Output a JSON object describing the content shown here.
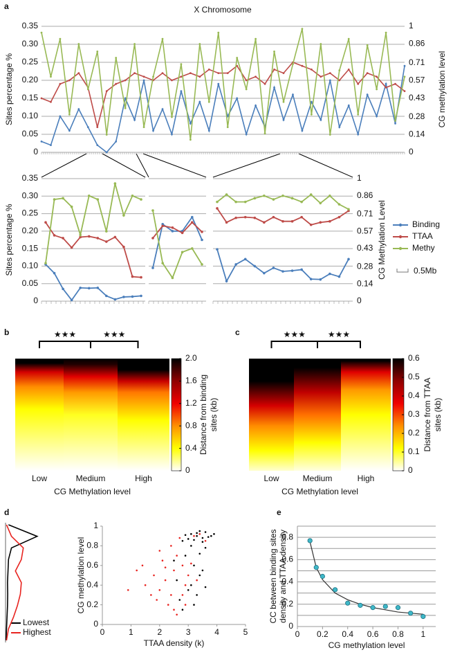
{
  "chart_data": [
    {
      "type": "line",
      "panel": "a",
      "title": "X Chromosome",
      "ylabel": "Sites percentage %",
      "y2label": "CG methylation level",
      "ylim": [
        0,
        0.35
      ],
      "yticks": [
        0,
        0.05,
        {
          "value": 0.1,
          "label": "0.10"
        },
        0.15,
        {
          "value": 0.2,
          "label": "0.20"
        },
        0.25,
        {
          "value": 0.3,
          "label": "0.30"
        },
        0.35
      ],
      "y2lim": [
        0,
        1
      ],
      "y2ticks": [
        0,
        0.14,
        0.28,
        0.43,
        0.57,
        0.71,
        0.86,
        1
      ],
      "grid": true,
      "series": [
        {
          "color": "#4a7ebb",
          "values": [
            0.03,
            0.02,
            0.1,
            0.06,
            0.12,
            0.07,
            0.02,
            0.0,
            0.03,
            0.15,
            0.09,
            0.2,
            0.06,
            0.12,
            0.05,
            0.17,
            0.08,
            0.14,
            0.06,
            0.19,
            0.1,
            0.15,
            0.05,
            0.13,
            0.07,
            0.18,
            0.09,
            0.16,
            0.06,
            0.14,
            0.09,
            0.2,
            0.07,
            0.13,
            0.05,
            0.16,
            0.1,
            0.19,
            0.08,
            0.24
          ]
        },
        {
          "color": "#be4b48",
          "values": [
            0.15,
            0.14,
            0.19,
            0.2,
            0.22,
            0.18,
            0.07,
            0.17,
            0.19,
            0.2,
            0.22,
            0.21,
            0.2,
            0.22,
            0.2,
            0.21,
            0.22,
            0.21,
            0.23,
            0.22,
            0.22,
            0.24,
            0.2,
            0.21,
            0.19,
            0.23,
            0.22,
            0.25,
            0.24,
            0.23,
            0.21,
            0.22,
            0.2,
            0.23,
            0.19,
            0.22,
            0.21,
            0.18,
            0.19,
            0.17
          ]
        },
        {
          "color": "#98b954",
          "axis": "y2",
          "values": [
            0.95,
            0.6,
            0.9,
            0.3,
            0.86,
            0.5,
            0.8,
            0.14,
            0.75,
            0.35,
            0.86,
            0.2,
            0.6,
            0.9,
            0.28,
            0.7,
            0.1,
            0.86,
            0.4,
            0.95,
            0.2,
            0.75,
            0.5,
            0.9,
            0.15,
            0.8,
            0.4,
            0.7,
            0.98,
            0.3,
            0.86,
            0.14,
            0.65,
            0.9,
            0.3,
            0.85,
            0.5,
            0.95,
            0.25,
            0.6
          ]
        }
      ]
    },
    {
      "type": "line-panels",
      "ylabel": "Sites percentage %",
      "y2label": "CG Methylation Level",
      "ylim": [
        0,
        0.35
      ],
      "yticks": [
        0,
        0.05,
        {
          "value": 0.1,
          "label": "0.10"
        },
        0.15,
        {
          "value": 0.2,
          "label": "0.20"
        },
        0.25,
        {
          "value": 0.3,
          "label": "0.30"
        },
        0.35
      ],
      "y2lim": [
        0,
        1
      ],
      "y2ticks": [
        0,
        0.14,
        0.28,
        0.43,
        0.57,
        0.71,
        0.86,
        1
      ],
      "grid": true,
      "legend": "right",
      "scale_label": "0.5Mb",
      "series": [
        {
          "name": "Binding",
          "color": "#4a7ebb",
          "values": [
            [
              0.105,
              0.08,
              0.035,
              0.003,
              0.038,
              0.037,
              0.038,
              0.015,
              0.005,
              0.012,
              0.013,
              0.015
            ],
            [
              0.095,
              0.22,
              0.2,
              0.2,
              0.24,
              0.175
            ],
            [
              0.148,
              0.057,
              0.105,
              0.12,
              0.1,
              0.08,
              0.095,
              0.085,
              0.087,
              0.09,
              0.063,
              0.062,
              0.078,
              0.07,
              0.12
            ]
          ]
        },
        {
          "name": "TTAA",
          "color": "#be4b48",
          "values": [
            [
              0.225,
              0.188,
              0.18,
              0.153,
              0.183,
              0.185,
              0.18,
              0.17,
              0.183,
              0.155,
              0.07,
              0.068
            ],
            [
              0.18,
              0.215,
              0.21,
              0.195,
              0.225,
              0.198
            ],
            [
              0.265,
              0.225,
              0.238,
              0.24,
              0.238,
              0.225,
              0.24,
              0.228,
              0.228,
              0.24,
              0.218,
              0.225,
              0.228,
              0.24,
              0.258
            ]
          ]
        },
        {
          "name": "Methy",
          "color": "#98b954",
          "axis": "y2",
          "values": [
            [
              0.31,
              0.83,
              0.84,
              0.77,
              0.54,
              0.86,
              0.83,
              0.57,
              0.96,
              0.7,
              0.86,
              0.83
            ],
            [
              0.74,
              0.31,
              0.19,
              0.4,
              0.43,
              0.3
            ],
            [
              0.81,
              0.87,
              0.81,
              0.81,
              0.84,
              0.86,
              0.83,
              0.86,
              0.84,
              0.81,
              0.87,
              0.8,
              0.86,
              0.79,
              0.75
            ]
          ]
        }
      ]
    },
    {
      "type": "heatmap",
      "panel": "b",
      "categories": [
        "Low",
        "Medium",
        "High"
      ],
      "xlabel": "CG Methylation level",
      "annotations": [
        "★★★",
        "★★★"
      ],
      "zlim": [
        0,
        2
      ],
      "zticks": [
        0,
        0.4,
        0.8,
        1.2,
        1.6,
        {
          "value": 2,
          "label": "2.0"
        }
      ],
      "zlabel": [
        "Distance from binding",
        "sites (kb)"
      ]
    },
    {
      "type": "heatmap",
      "panel": "c",
      "categories": [
        "Low",
        "Medium",
        "High"
      ],
      "xlabel": "CG Methylation level",
      "annotations": [
        "★★★",
        "★★★"
      ],
      "zlim": [
        0,
        0.6
      ],
      "zticks": [
        0,
        0.1,
        0.2,
        0.3,
        0.4,
        0.5,
        0.6
      ],
      "zlabel": [
        "Distance from TTAA",
        "sites (kb)"
      ]
    },
    {
      "type": "scatter",
      "panel": "d",
      "xlabel": "TTAA density (k)",
      "ylabel": "CG methylation level",
      "xlim": [
        0,
        5
      ],
      "xticks": [
        0,
        1,
        2,
        3,
        4,
        5
      ],
      "ylim": [
        0,
        1
      ],
      "yticks": [
        0,
        0.2,
        0.4,
        0.6,
        0.8,
        1
      ],
      "density_xlim": [
        0,
        3.5
      ],
      "density_levels": [
        0,
        0.1,
        0.2,
        0.3,
        0.4,
        0.5,
        0.6,
        0.7,
        0.8,
        0.9,
        1
      ],
      "series": [
        {
          "name": "Lowest",
          "color": "#000000",
          "x": [
            3.1,
            3.3,
            3.5,
            3.6,
            3.2,
            2.9,
            3.4,
            3.7,
            3.0,
            3.3,
            3.5,
            3.8,
            2.8,
            3.1,
            3.6,
            3.2,
            3.4,
            2.6,
            3.0,
            3.3,
            2.9,
            3.5,
            2.7,
            3.1,
            3.9,
            2.5,
            3.2,
            3.6,
            2.8,
            3.4
          ],
          "values": [
            0.92,
            0.9,
            0.88,
            0.94,
            0.86,
            0.91,
            0.95,
            0.89,
            0.87,
            0.93,
            0.84,
            0.9,
            0.85,
            0.8,
            0.78,
            0.6,
            0.5,
            0.45,
            0.35,
            0.3,
            0.7,
            0.55,
            0.25,
            0.4,
            0.92,
            0.65,
            0.2,
            0.38,
            0.15,
            0.72
          ],
          "density": [
            0.05,
            0.1,
            0.15,
            0.2,
            0.22,
            0.2,
            0.25,
            0.3,
            0.6,
            3.2,
            0.3
          ]
        },
        {
          "name": "Highest",
          "color": "#e8231f",
          "x": [
            1.8,
            2.2,
            2.5,
            2.8,
            2.0,
            2.4,
            3.0,
            1.5,
            2.6,
            2.1,
            3.2,
            2.7,
            1.9,
            2.3,
            2.9,
            1.2,
            2.5,
            3.4,
            2.0,
            2.8,
            3.1,
            1.7,
            2.4,
            3.3,
            2.6,
            0.9,
            2.2,
            3.6,
            1.4,
            2.9
          ],
          "values": [
            0.5,
            0.45,
            0.55,
            0.6,
            0.35,
            0.3,
            0.5,
            0.4,
            0.7,
            0.65,
            0.9,
            0.88,
            0.25,
            0.2,
            0.4,
            0.55,
            0.15,
            0.92,
            0.75,
            0.3,
            0.62,
            0.3,
            0.8,
            0.45,
            0.1,
            0.35,
            0.58,
            0.85,
            0.6,
            0.2
          ],
          "density": [
            0.1,
            0.3,
            0.8,
            1.2,
            1.5,
            1.6,
            1.0,
            1.6,
            1.8,
            0.6,
            0.1
          ]
        }
      ]
    },
    {
      "type": "scatter-fit",
      "panel": "e",
      "xlabel": "CG methylation level",
      "ylabel": [
        "CC between binding sites",
        "density and TTAA density"
      ],
      "xlim": [
        0,
        1.1
      ],
      "xticks": [
        0,
        0.2,
        0.4,
        0.6,
        0.8,
        1
      ],
      "ylim": [
        0,
        0.9
      ],
      "yticks": [
        0,
        0.2,
        0.4,
        0.6,
        0.8
      ],
      "minor_yticks": [
        0.1,
        0.3,
        0.5,
        0.7,
        0.9
      ],
      "grid": true,
      "color": "#3fb8c8",
      "x": [
        0.1,
        0.15,
        0.2,
        0.3,
        0.4,
        0.5,
        0.6,
        0.7,
        0.8,
        0.9,
        1.0
      ],
      "values": [
        0.77,
        0.53,
        0.45,
        0.33,
        0.21,
        0.19,
        0.17,
        0.18,
        0.17,
        0.12,
        0.09
      ],
      "fit": [
        0.76,
        0.53,
        0.42,
        0.3,
        0.24,
        0.2,
        0.17,
        0.15,
        0.13,
        0.12,
        0.11
      ]
    }
  ]
}
